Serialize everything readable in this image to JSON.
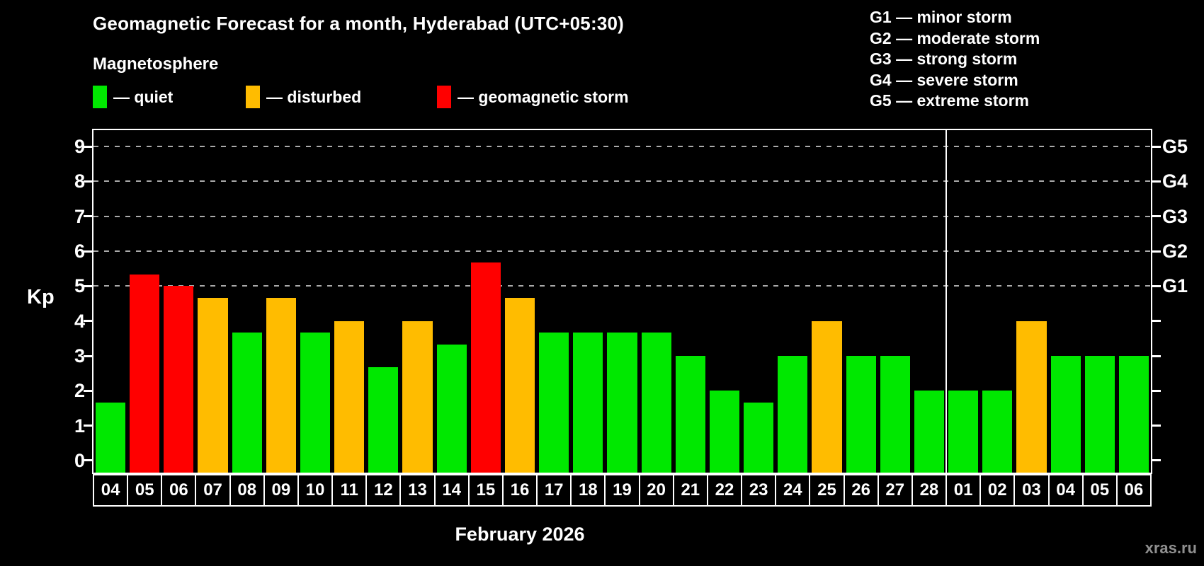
{
  "header": {
    "title": "Geomagnetic Forecast for a month, Hyderabad (UTC+05:30)",
    "subtitle": "Magnetosphere"
  },
  "legend": {
    "items": [
      {
        "key": "quiet",
        "label": "— quiet",
        "color": "#00e800"
      },
      {
        "key": "disturbed",
        "label": "— disturbed",
        "color": "#ffbc00"
      },
      {
        "key": "storm",
        "label": "— geomagnetic storm",
        "color": "#ff0000"
      }
    ]
  },
  "g_legend": {
    "items": [
      "G1 — minor storm",
      "G2 — moderate storm",
      "G3 — strong storm",
      "G4 — severe storm",
      "G5 — extreme storm"
    ]
  },
  "chart_data": {
    "type": "bar",
    "title": "Geomagnetic Forecast for a month, Hyderabad (UTC+05:30)",
    "ylabel": "Kp",
    "xlabel": "February 2026",
    "ylim": [
      -0.345,
      9.47
    ],
    "yticks": [
      0,
      1,
      2,
      3,
      4,
      5,
      6,
      7,
      8,
      9
    ],
    "gridlines_at": [
      5,
      6,
      7,
      8,
      9
    ],
    "grid": "dashed horizontal at G-levels only",
    "right_axis": {
      "labels": [
        "G1",
        "G2",
        "G3",
        "G4",
        "G5"
      ],
      "at_kp": [
        5,
        6,
        7,
        8,
        9
      ]
    },
    "categories": [
      "04",
      "05",
      "06",
      "07",
      "08",
      "09",
      "10",
      "11",
      "12",
      "13",
      "14",
      "15",
      "16",
      "17",
      "18",
      "19",
      "20",
      "21",
      "22",
      "23",
      "24",
      "25",
      "26",
      "27",
      "28",
      "01",
      "02",
      "03",
      "04",
      "05",
      "06"
    ],
    "values": [
      1.67,
      5.33,
      5.0,
      4.67,
      3.67,
      4.67,
      3.67,
      4.0,
      2.67,
      4.0,
      3.33,
      5.67,
      4.67,
      3.67,
      3.67,
      3.67,
      3.67,
      3.0,
      2.0,
      1.67,
      3.0,
      4.0,
      3.0,
      3.0,
      2.0,
      2.0,
      2.0,
      4.0,
      3.0,
      3.0,
      3.0
    ],
    "status": [
      "quiet",
      "storm",
      "storm",
      "disturbed",
      "quiet",
      "disturbed",
      "quiet",
      "disturbed",
      "quiet",
      "disturbed",
      "quiet",
      "storm",
      "disturbed",
      "quiet",
      "quiet",
      "quiet",
      "quiet",
      "quiet",
      "quiet",
      "quiet",
      "quiet",
      "disturbed",
      "quiet",
      "quiet",
      "quiet",
      "quiet",
      "quiet",
      "disturbed",
      "quiet",
      "quiet",
      "quiet"
    ],
    "month_divider_after_index": 24,
    "colors": {
      "quiet": "#00e800",
      "disturbed": "#ffbc00",
      "storm": "#ff0000",
      "grid": "#aaaaaa",
      "frame": "#ffffff",
      "text": "#ffffff",
      "background": "#000000",
      "watermark": "#8f8f8f"
    }
  },
  "footer": {
    "month_label": "February 2026",
    "watermark": "xras.ru"
  }
}
